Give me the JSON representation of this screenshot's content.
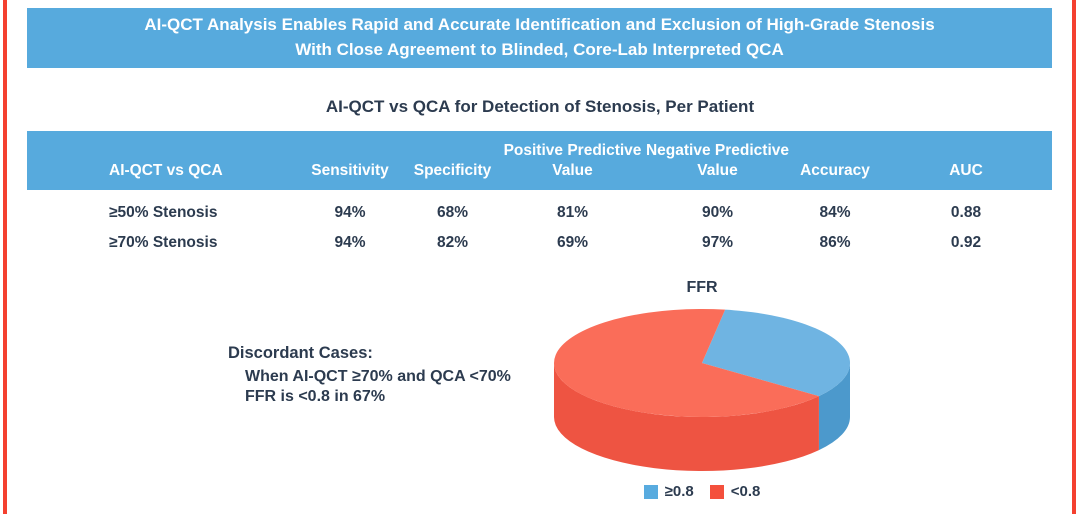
{
  "colors": {
    "banner": "#57AADD",
    "border": "#F4402F",
    "text": "#2C3B4F"
  },
  "banner": {
    "line1": "AI-QCT Analysis Enables Rapid and Accurate Identification and Exclusion of High-Grade Stenosis",
    "line2": "With Close Agreement to Blinded, Core-Lab Interpreted QCA"
  },
  "chart_data": [
    {
      "type": "table",
      "title": "AI-QCT vs QCA for Detection of Stenosis, Per Patient",
      "columns": [
        "AI-QCT vs QCA",
        "Sensitivity",
        "Specificity",
        "Positive Predictive Value",
        "Negative Predictive Value",
        "Accuracy",
        "AUC"
      ],
      "rows": [
        [
          "≥50% Stenosis",
          "94%",
          "68%",
          "81%",
          "90%",
          "84%",
          "0.88"
        ],
        [
          "≥70% Stenosis",
          "94%",
          "82%",
          "69%",
          "97%",
          "86%",
          "0.92"
        ]
      ]
    },
    {
      "type": "pie",
      "title": "FFR",
      "labels": [
        "≥0.8",
        "<0.8"
      ],
      "values": [
        33,
        67
      ],
      "unit": "percent",
      "style": "3d",
      "start_angle_deg": 81,
      "legend_position": "bottom",
      "colors": [
        "#58ABDF",
        "#F4503C"
      ],
      "top_colors": [
        "#6FB4E2",
        "#FA6D59"
      ],
      "side_colors": [
        "#4C99CC",
        "#EE5442"
      ],
      "annotation": {
        "heading": "Discordant Cases:",
        "line1": "When AI-QCT ≥70% and QCA <70%",
        "line2": "FFR is <0.8 in 67%"
      }
    }
  ]
}
